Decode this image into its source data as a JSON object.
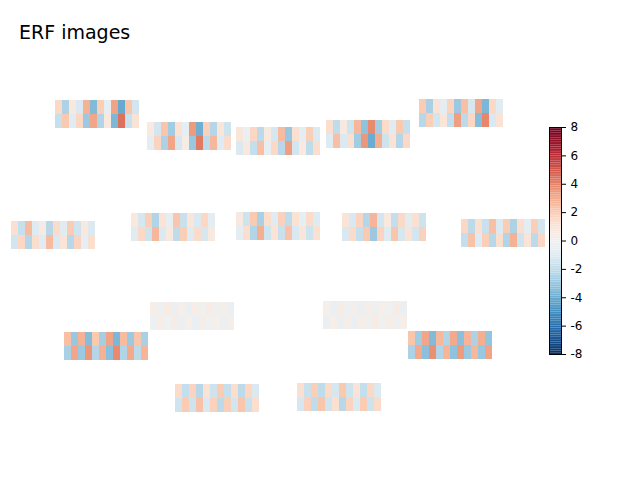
{
  "chart_data": {
    "type": "image_grid",
    "title": "ERF images",
    "tick_labels": false,
    "panels": [
      {
        "cells": [
          [
            1.5,
            -2.5,
            0.8,
            -1.2,
            2.8,
            -3.5,
            1.9,
            -0.6,
            3.2,
            -4.1,
            2.2,
            -1.4
          ],
          [
            -1.8,
            2.1,
            -0.9,
            1.6,
            -2.9,
            3.1,
            -2.4,
            0.7,
            -3.6,
            4.4,
            -1.7,
            1.1
          ]
        ]
      },
      {
        "cells": [
          [
            0.6,
            -1.4,
            2.2,
            -2.8,
            1.1,
            -0.7,
            3.4,
            -3.9,
            1.8,
            -2.3,
            0.9,
            -1.6
          ],
          [
            -0.8,
            1.7,
            -2.5,
            3.1,
            -1.3,
            0.5,
            -3.0,
            4.2,
            -2.1,
            2.6,
            -1.0,
            1.4
          ]
        ]
      },
      {
        "cells": [
          [
            0.9,
            -0.5,
            1.6,
            -2.1,
            0.7,
            -1.3,
            2.5,
            -3.0,
            1.2,
            -0.8,
            1.9,
            -1.1
          ],
          [
            -1.1,
            0.8,
            -1.9,
            2.4,
            -0.6,
            1.5,
            -2.2,
            3.3,
            -1.4,
            0.6,
            -2.0,
            1.3
          ]
        ]
      },
      {
        "cells": [
          [
            1.3,
            -2.0,
            0.7,
            -1.5,
            2.6,
            -3.2,
            3.8,
            -2.7,
            1.4,
            -0.9,
            2.1,
            -1.8
          ],
          [
            -1.0,
            2.4,
            -1.1,
            1.2,
            -2.8,
            3.5,
            -4.0,
            2.9,
            -1.6,
            1.1,
            -2.3,
            1.5
          ]
        ]
      },
      {
        "cells": [
          [
            2.0,
            -2.6,
            1.1,
            -0.8,
            1.7,
            -2.9,
            2.4,
            -1.3,
            3.1,
            -3.6,
            1.5,
            -0.9
          ],
          [
            -2.2,
            1.9,
            -1.4,
            0.9,
            -1.9,
            3.3,
            -2.1,
            1.6,
            -3.4,
            3.9,
            -1.2,
            1.1
          ]
        ]
      },
      {
        "cells": [
          [
            1.2,
            -1.8,
            2.5,
            -1.0,
            0.6,
            -2.2,
            1.4,
            -0.9,
            2.0,
            -1.5,
            0.8,
            -1.1
          ],
          [
            -1.4,
            1.6,
            -2.3,
            1.3,
            -0.9,
            2.5,
            -1.2,
            1.0,
            -2.2,
            1.7,
            -0.7,
            1.3
          ]
        ]
      },
      {
        "cells": [
          [
            0.8,
            -1.3,
            1.9,
            -2.4,
            1.0,
            -0.6,
            2.2,
            -1.7,
            0.9,
            -1.2,
            1.6,
            -0.8
          ],
          [
            -0.9,
            1.5,
            -1.6,
            2.6,
            -1.1,
            0.8,
            -2.0,
            1.9,
            -1.0,
            1.4,
            -1.3,
            0.7
          ]
        ]
      },
      {
        "cells": [
          [
            0.7,
            -1.6,
            2.1,
            -2.6,
            1.3,
            -0.9,
            1.8,
            -2.0,
            1.1,
            -0.7,
            1.4,
            -1.0
          ],
          [
            -0.8,
            1.3,
            -2.4,
            2.9,
            -1.5,
            1.0,
            -1.7,
            2.3,
            -1.2,
            0.9,
            -1.6,
            1.2
          ]
        ]
      },
      {
        "cells": [
          [
            1.0,
            -1.2,
            1.7,
            -2.3,
            2.7,
            -1.4,
            0.8,
            -1.9,
            1.5,
            -0.9,
            1.2,
            -1.6
          ],
          [
            -1.2,
            1.4,
            -1.8,
            2.1,
            -2.9,
            1.7,
            -1.0,
            2.2,
            -1.3,
            1.1,
            -1.4,
            1.8
          ]
        ]
      },
      {
        "cells": [
          [
            1.6,
            -2.1,
            1.2,
            -1.7,
            2.4,
            -1.1,
            2.0,
            -2.5,
            1.3,
            -0.8,
            1.9,
            -1.4
          ],
          [
            -1.9,
            2.3,
            -1.0,
            1.9,
            -2.2,
            1.3,
            -2.4,
            2.8,
            -1.5,
            1.0,
            -2.1,
            1.6
          ]
        ]
      },
      {
        "cells": [
          [
            0.4,
            -0.3,
            0.5,
            -0.4,
            0.3,
            -0.5,
            0.4,
            -0.2,
            0.5,
            -0.3,
            0.2,
            -0.4
          ],
          [
            -0.3,
            0.4,
            -0.2,
            0.5,
            -0.4,
            0.3,
            -0.5,
            0.4,
            -0.2,
            0.3,
            -0.4,
            0.2
          ]
        ]
      },
      {
        "cells": [
          [
            0.3,
            -0.4,
            0.5,
            -0.3,
            0.2,
            -0.5,
            0.4,
            -0.3,
            0.3,
            -0.2,
            0.5,
            -0.4
          ],
          [
            -0.4,
            0.3,
            -0.4,
            0.2,
            -0.5,
            0.4,
            -0.3,
            0.5,
            -0.2,
            0.4,
            -0.3,
            0.3
          ]
        ]
      },
      {
        "cells": [
          [
            2.4,
            -3.0,
            2.8,
            -3.4,
            2.1,
            -2.7,
            3.2,
            -3.6,
            2.5,
            -2.9,
            2.2,
            -2.6
          ],
          [
            -2.6,
            3.1,
            -2.9,
            3.5,
            -2.3,
            2.8,
            -3.3,
            3.8,
            -2.4,
            3.0,
            -2.1,
            2.7
          ]
        ]
      },
      {
        "cells": [
          [
            2.2,
            -2.8,
            3.1,
            -3.5,
            2.6,
            -2.4,
            3.0,
            -3.3,
            2.7,
            -2.5,
            2.9,
            -3.1
          ],
          [
            -2.5,
            3.0,
            -3.3,
            3.7,
            -2.4,
            2.7,
            -3.2,
            3.4,
            -2.9,
            2.6,
            -3.0,
            3.2
          ]
        ]
      },
      {
        "cells": [
          [
            1.4,
            -1.9,
            1.7,
            -2.2,
            1.1,
            -1.6,
            2.0,
            -1.8,
            1.3,
            -2.1,
            1.6,
            -1.2
          ],
          [
            -1.5,
            2.0,
            -1.6,
            2.3,
            -1.2,
            1.8,
            -2.1,
            1.9,
            -1.4,
            2.2,
            -1.7,
            1.3
          ]
        ]
      },
      {
        "cells": [
          [
            1.2,
            -1.7,
            1.9,
            -2.0,
            1.4,
            -1.3,
            2.1,
            -1.6,
            1.0,
            -1.9,
            1.5,
            -1.1
          ],
          [
            -1.3,
            1.8,
            -2.0,
            2.2,
            -1.5,
            1.2,
            -2.2,
            1.7,
            -1.1,
            2.0,
            -1.6,
            1.4
          ]
        ]
      }
    ],
    "colorbar": {
      "lim": [
        -8,
        8
      ],
      "ticks": [
        -8,
        -6,
        -4,
        -2,
        0,
        2,
        4,
        6,
        8
      ]
    }
  }
}
